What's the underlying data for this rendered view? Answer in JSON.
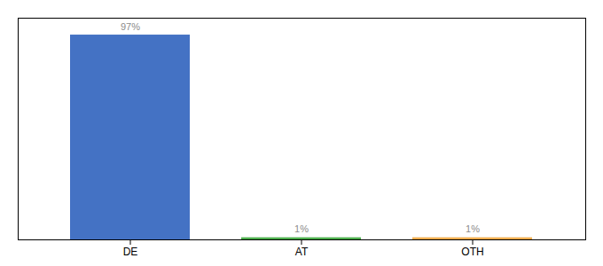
{
  "chart_data": {
    "type": "bar",
    "categories": [
      "DE",
      "AT",
      "OTH"
    ],
    "values": [
      97,
      1,
      1
    ],
    "value_labels": [
      "97%",
      "1%",
      "1%"
    ],
    "colors": [
      "#4472c4",
      "#4cae4c",
      "#f0ad4e"
    ],
    "ylim": [
      0,
      105
    ],
    "data_labels": true,
    "tick_labels": "x"
  }
}
